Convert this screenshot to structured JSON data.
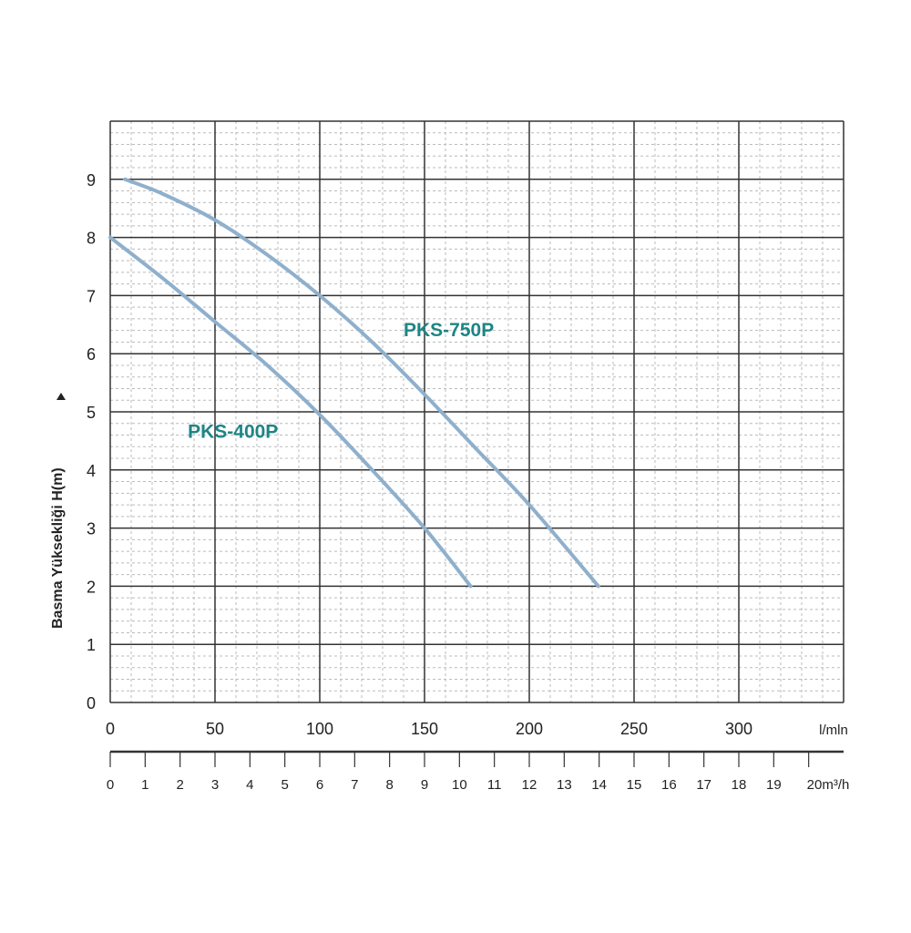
{
  "chart_data": {
    "type": "line",
    "title": "",
    "ylabel": "Basma Yüksekliği H(m)",
    "xlabel": "l/mln",
    "secondary_xlabel": "m³/h",
    "xlim": [
      0,
      350
    ],
    "ylim": [
      0,
      10
    ],
    "grid": true,
    "x_ticks": [
      "0",
      "50",
      "100",
      "150",
      "200",
      "250",
      "300"
    ],
    "y_ticks": [
      "0",
      "1",
      "2",
      "3",
      "4",
      "5",
      "6",
      "7",
      "8",
      "9"
    ],
    "secondary_x_ticks": [
      "0",
      "1",
      "2",
      "3",
      "4",
      "5",
      "6",
      "7",
      "8",
      "9",
      "10",
      "11",
      "12",
      "13",
      "14",
      "15",
      "16",
      "17",
      "18",
      "19",
      "20"
    ],
    "series": [
      {
        "name": "PKS-400P",
        "color": "#8fb0cc",
        "label_at": [
          37,
          4.55
        ],
        "x": [
          0,
          25,
          50,
          75,
          100,
          125,
          150,
          172
        ],
        "y": [
          8,
          7.3,
          6.55,
          5.8,
          4.95,
          4.0,
          3.0,
          2.0
        ]
      },
      {
        "name": "PKS-750P",
        "color": "#8fb0cc",
        "label_at": [
          140,
          6.3
        ],
        "x": [
          7,
          25,
          50,
          75,
          100,
          125,
          150,
          175,
          200,
          233
        ],
        "y": [
          9,
          8.75,
          8.3,
          7.7,
          7.0,
          6.2,
          5.3,
          4.35,
          3.4,
          2.0
        ]
      }
    ]
  }
}
